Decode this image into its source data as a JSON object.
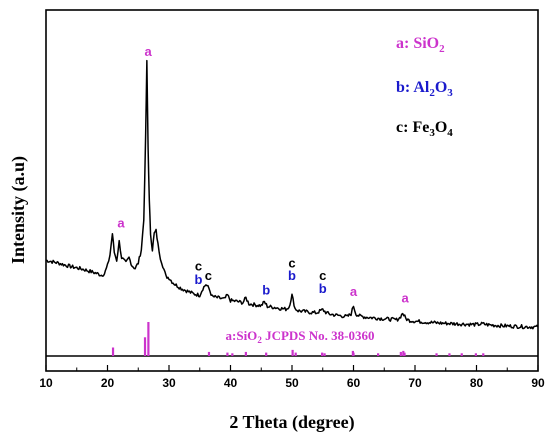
{
  "chart_data": {
    "type": "line",
    "xlabel": "2 Theta (degree)",
    "ylabel": "Intensity (a.u)",
    "xlim": [
      10,
      90
    ],
    "xticks": [
      "10",
      "20",
      "30",
      "40",
      "50",
      "60",
      "70",
      "80",
      "90"
    ],
    "grid": false,
    "legend": {
      "placement": "top-right",
      "entries": [
        {
          "key": "a:",
          "formula": "SiO",
          "sub": "2",
          "color": "#cc33cc"
        },
        {
          "key": "b:",
          "formula": "Al",
          "sub": "2",
          "formula2": "O",
          "sub2": "3",
          "color": "#1a1acc"
        },
        {
          "key": "c:",
          "formula": "Fe",
          "sub": "3",
          "formula2": "O",
          "sub2": "4",
          "color": "#000000"
        }
      ]
    },
    "series": [
      {
        "color": "#000000",
        "x": [
          10,
          11,
          12,
          13,
          14,
          15,
          16,
          17,
          18,
          19,
          19.5,
          20,
          20.4,
          20.8,
          21.1,
          21.5,
          21.9,
          22.3,
          23,
          23.5,
          24,
          24.5,
          25,
          25.5,
          25.9,
          26.2,
          26.4,
          26.6,
          26.8,
          27,
          27.3,
          27.6,
          27.9,
          28.2,
          28.6,
          29,
          29.5,
          30,
          30.5,
          31,
          32,
          33,
          34,
          35,
          35.5,
          36,
          36.5,
          37,
          38,
          39,
          39.5,
          40,
          41,
          42,
          42.5,
          43,
          44,
          45,
          45.5,
          46,
          47,
          48,
          49,
          49.5,
          50,
          50.5,
          51,
          52,
          53,
          54,
          54.5,
          55,
          55.5,
          56,
          57,
          58,
          59,
          59.6,
          60,
          60.4,
          61,
          62,
          63,
          64,
          65,
          66,
          67,
          67.5,
          68,
          68.5,
          69,
          70,
          72,
          74,
          76,
          78,
          80,
          81,
          82,
          84,
          86,
          88,
          90
        ],
        "y": [
          26,
          25.5,
          25,
          24.3,
          23.7,
          23.2,
          22.7,
          22,
          21.3,
          20.5,
          21,
          24,
          28,
          36,
          29,
          26,
          33,
          27,
          25,
          27,
          24,
          23,
          25,
          30,
          41,
          72,
          100,
          68,
          48,
          36,
          30,
          36,
          37,
          32,
          27,
          24,
          20,
          19.5,
          18,
          17,
          15.5,
          14.5,
          13.5,
          13,
          15.5,
          17,
          15.5,
          12.5,
          12,
          11.5,
          13,
          11,
          10.7,
          10.2,
          12,
          9.8,
          9.4,
          9.1,
          10.5,
          8.8,
          8.5,
          8.1,
          7.8,
          8.5,
          13,
          8,
          7.2,
          6.9,
          6.6,
          6.4,
          7,
          7.6,
          6.6,
          6,
          5.6,
          5.3,
          5,
          6,
          9,
          6,
          5.2,
          4.8,
          4.6,
          4.4,
          4.2,
          4,
          3.8,
          4.5,
          6.3,
          4.3,
          3.6,
          3.3,
          2.9,
          2.6,
          2.4,
          2.2,
          2,
          2.3,
          1.9,
          1.6,
          1.4,
          1.2,
          1.1
        ]
      }
    ],
    "reference": {
      "label_prefix": "a:SiO",
      "label_sub": "2",
      "label_suffix": " JCPDS No. 38-0360",
      "color": "#cc33cc",
      "lines": [
        {
          "x": 20.9,
          "h": 0.25
        },
        {
          "x": 26.1,
          "h": 0.55
        },
        {
          "x": 26.65,
          "h": 1.0
        },
        {
          "x": 36.5,
          "h": 0.12
        },
        {
          "x": 39.5,
          "h": 0.1
        },
        {
          "x": 40.3,
          "h": 0.08
        },
        {
          "x": 42.5,
          "h": 0.12
        },
        {
          "x": 45.8,
          "h": 0.1
        },
        {
          "x": 50.1,
          "h": 0.18
        },
        {
          "x": 50.6,
          "h": 0.1
        },
        {
          "x": 54.9,
          "h": 0.1
        },
        {
          "x": 55.3,
          "h": 0.08
        },
        {
          "x": 59.9,
          "h": 0.15
        },
        {
          "x": 60.0,
          "h": 0.1
        },
        {
          "x": 64.0,
          "h": 0.08
        },
        {
          "x": 67.7,
          "h": 0.12
        },
        {
          "x": 68.1,
          "h": 0.15
        },
        {
          "x": 68.3,
          "h": 0.1
        },
        {
          "x": 73.5,
          "h": 0.08
        },
        {
          "x": 75.6,
          "h": 0.08
        },
        {
          "x": 77.6,
          "h": 0.08
        },
        {
          "x": 79.9,
          "h": 0.08
        },
        {
          "x": 81.1,
          "h": 0.08
        }
      ]
    },
    "annotations": [
      {
        "text": "a",
        "x": 26.6,
        "y": 100,
        "color": "#cc33cc"
      },
      {
        "text": "a",
        "x": 22.2,
        "y": 36,
        "color": "#cc33cc"
      },
      {
        "text": "c",
        "x": 34.8,
        "y": 20,
        "color": "#000000"
      },
      {
        "text": "b",
        "x": 34.8,
        "y": 15,
        "color": "#1a1acc"
      },
      {
        "text": "c",
        "x": 36.4,
        "y": 16.5,
        "color": "#000000"
      },
      {
        "text": "b",
        "x": 45.8,
        "y": 11,
        "color": "#1a1acc"
      },
      {
        "text": "c",
        "x": 50.0,
        "y": 21,
        "color": "#000000"
      },
      {
        "text": "b",
        "x": 50.0,
        "y": 16.5,
        "color": "#1a1acc"
      },
      {
        "text": "c",
        "x": 55.0,
        "y": 16.5,
        "color": "#000000"
      },
      {
        "text": "b",
        "x": 55.0,
        "y": 11.5,
        "color": "#1a1acc"
      },
      {
        "text": "a",
        "x": 60.0,
        "y": 10.5,
        "color": "#cc33cc"
      },
      {
        "text": "a",
        "x": 68.4,
        "y": 8,
        "color": "#cc33cc"
      }
    ]
  }
}
